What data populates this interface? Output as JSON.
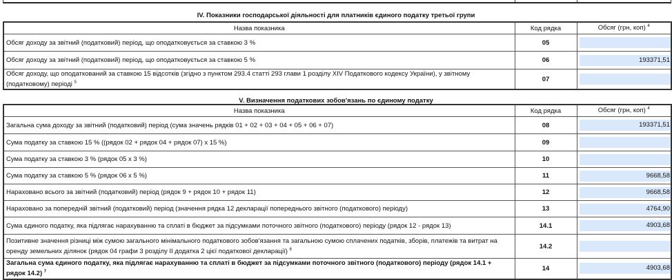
{
  "section4": {
    "title": "IV. Показники господарської діяльності для платників єдиного податку третьої групи",
    "headers": {
      "name": "Назва показника",
      "code": "Код рядка",
      "value": "Обсяг (грн, коп)",
      "value_note": "4"
    },
    "rows": [
      {
        "name": "Обсяг доходу за звітний (податковий) період, що оподатковується за ставкою 3 %",
        "note": "",
        "code": "05",
        "value": ""
      },
      {
        "name": "Обсяг доходу за звітний (податковий) період, що оподатковується за ставкою 5 %",
        "note": "",
        "code": "06",
        "value": "193371,51"
      },
      {
        "name": "Обсяг доходу, що оподаткований за ставкою 15 відсотків (згідно з пунктом 293.4 статті 293 глави 1 розділу XIV Податкового кодексу України), у звітному (податковому) періоді",
        "note": "5",
        "code": "07",
        "value": ""
      }
    ]
  },
  "section5": {
    "title": "V. Визначення податкових зобов'язань по єдиному податку",
    "headers": {
      "name": "Назва показника",
      "code": "Код рядка",
      "value": "Обсяг (грн, коп)",
      "value_note": "4"
    },
    "rows": [
      {
        "name": "Загальна сума доходу за звітний (податковий) період (сума значень рядків 01 + 02 + 03 + 04 + 05 + 06 + 07)",
        "note": "",
        "code": "08",
        "value": "193371,51"
      },
      {
        "name": "Сума податку за ставкою 15 % ((рядок 02 + рядок 04 + рядок 07) x 15 %)",
        "note": "",
        "code": "09",
        "value": ""
      },
      {
        "name": "Сума податку за ставкою 3 % (рядок  05 x 3 %)",
        "note": "",
        "code": "10",
        "value": ""
      },
      {
        "name": "Сума податку за ставкою 5 % (рядок 06 x 5 %)",
        "note": "",
        "code": "11",
        "value": "9668,58"
      },
      {
        "name": "Нараховано всього за звітний (податковий) період (рядок 9 + рядок 10 + рядок 11)",
        "note": "",
        "code": "12",
        "value": "9668,58"
      },
      {
        "name": "Нараховано за попередній звітний (податковий) період (значення рядка 12 декларації  попереднього звітного (податкового) періоду)",
        "note": "",
        "code": "13",
        "value": "4764,90"
      },
      {
        "name": "Сума єдиного податку, яка підлягає нарахуванню та сплаті в бюджет за підсумками поточного звітного (податкового) періоду (рядок 12 - рядок 13)",
        "note": "",
        "code": "14.1",
        "value": "4903,68"
      },
      {
        "name": "Позитивне значення різниці між сумою загального мінімального податкового зобов'язання та загальною сумою сплачених податків, зборів, платежів та витрат на оренду земельних ділянок (рядок 04 графи 3 розділу II додатка 2 цієї податкової декларації)",
        "note": "6",
        "code": "14.2",
        "value": ""
      },
      {
        "name": "Загальна сума єдиного податку, яка підлягає нарахуванню та сплаті в бюджет за підсумками поточного звітного (податкового) періоду  (рядок 14.1 + рядок 14.2)",
        "note": "7",
        "code": "14",
        "value": "4903,68",
        "bold": true
      }
    ]
  }
}
